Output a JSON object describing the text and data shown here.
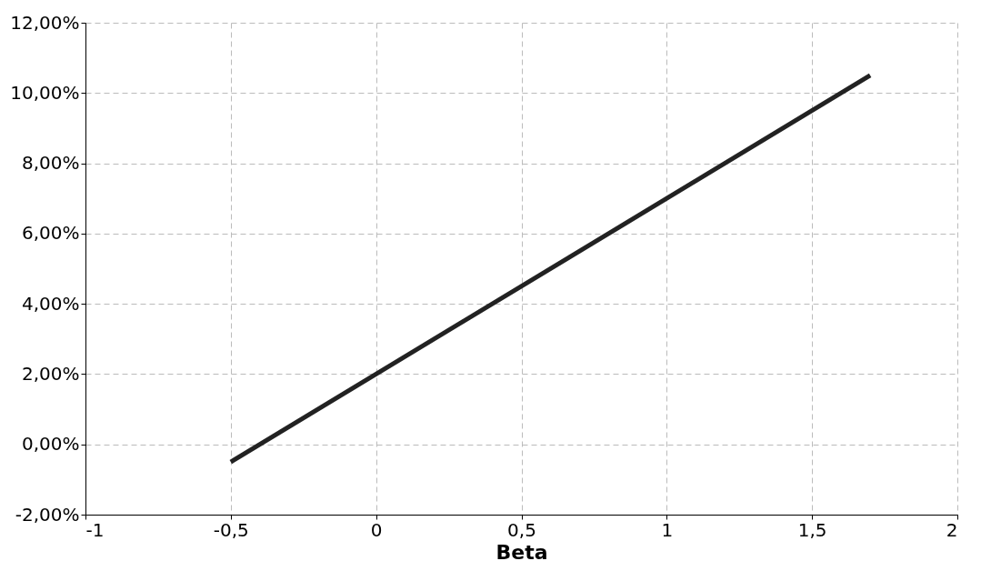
{
  "chart_data": {
    "type": "line",
    "xlabel": "Beta",
    "series": [
      {
        "color": "#222222",
        "x": [
          -0.5,
          1.7
        ],
        "values": [
          -0.5,
          10.5
        ]
      }
    ],
    "xlim": [
      -1,
      2
    ],
    "xticks": [
      -1,
      {
        "value": -0.5,
        "label": "-0,5"
      },
      0,
      {
        "value": 0.5,
        "label": "0,5"
      },
      1,
      {
        "value": 1.5,
        "label": "1,5"
      },
      2
    ],
    "ylim": [
      -2,
      12
    ],
    "yticks": [
      {
        "value": -2,
        "label": "-2,00%"
      },
      {
        "value": 0,
        "label": "0,00%"
      },
      {
        "value": 2,
        "label": "2,00%"
      },
      {
        "value": 4,
        "label": "4,00%"
      },
      {
        "value": 6,
        "label": "6,00%"
      },
      {
        "value": 8,
        "label": "8,00%"
      },
      {
        "value": 10,
        "label": "10,00%"
      },
      {
        "value": 12,
        "label": "12,00%"
      }
    ],
    "grid": true,
    "line_style": "solid",
    "marker": "none"
  }
}
